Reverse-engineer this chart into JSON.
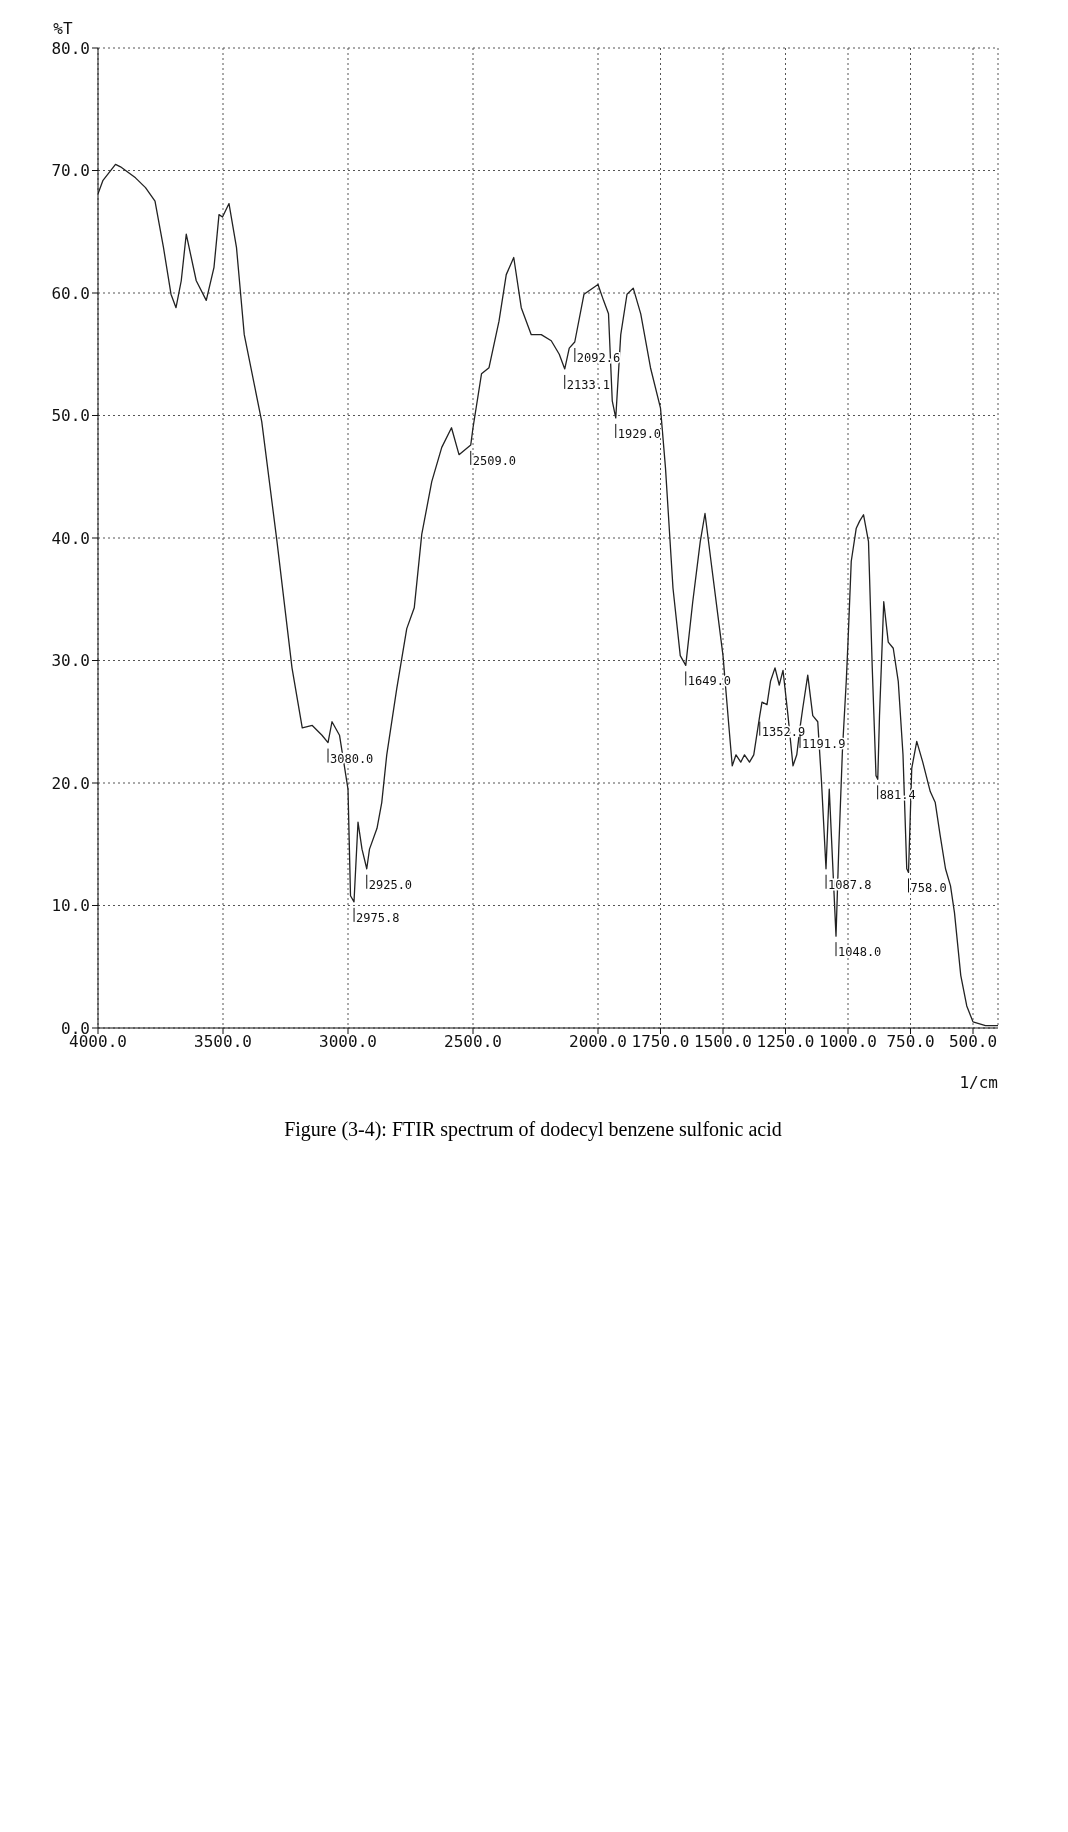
{
  "chart_data": {
    "type": "line",
    "title": "Figure (3-4): FTIR spectrum of dodecyl benzene sulfonic acid",
    "xlabel": "1/cm",
    "ylabel": "%T",
    "x": [
      4000,
      3980,
      3930,
      3910,
      3850,
      3810,
      3772,
      3738,
      3708,
      3688,
      3667,
      3647,
      3607,
      3567,
      3536,
      3516,
      3502,
      3476,
      3446,
      3415,
      3345,
      3284,
      3224,
      3183,
      3143,
      3104,
      3080,
      3064,
      3034,
      3000,
      2990,
      2976,
      2960,
      2944,
      2925,
      2914,
      2884,
      2865,
      2845,
      2805,
      2765,
      2735,
      2705,
      2665,
      2625,
      2586,
      2556,
      2509,
      2500,
      2466,
      2436,
      2396,
      2367,
      2337,
      2307,
      2267,
      2227,
      2187,
      2155,
      2133,
      2115,
      2093,
      2056,
      2000,
      1978,
      1958,
      1943,
      1929,
      1909,
      1884,
      1859,
      1829,
      1790,
      1750,
      1730,
      1700,
      1671,
      1649,
      1621,
      1591,
      1572,
      1548,
      1500,
      1478,
      1463,
      1448,
      1429,
      1414,
      1394,
      1377,
      1353,
      1344,
      1324,
      1310,
      1292,
      1275,
      1260,
      1240,
      1220,
      1205,
      1192,
      1181,
      1161,
      1141,
      1121,
      1106,
      1088,
      1075,
      1048,
      1037,
      1022,
      1007,
      1000,
      987,
      967,
      953,
      938,
      918,
      903,
      888,
      881,
      874,
      857,
      839,
      819,
      799,
      780,
      765,
      758,
      745,
      725,
      701,
      671,
      651,
      632,
      610,
      590,
      574,
      549,
      525,
      500,
      450,
      400
    ],
    "values": [
      68.1,
      69.2,
      70.5,
      70.3,
      69.4,
      68.6,
      67.5,
      63.7,
      59.9,
      58.8,
      61.0,
      64.8,
      61.0,
      59.4,
      62.1,
      66.4,
      66.2,
      67.3,
      63.7,
      56.6,
      49.5,
      39.7,
      29.4,
      24.5,
      24.7,
      23.9,
      23.3,
      25.0,
      23.9,
      19.5,
      10.8,
      10.3,
      16.8,
      14.6,
      13.0,
      14.6,
      16.3,
      18.4,
      22.3,
      27.7,
      32.6,
      34.3,
      40.3,
      44.6,
      47.4,
      49.0,
      46.8,
      47.6,
      49.0,
      53.4,
      53.9,
      57.7,
      61.5,
      62.9,
      58.8,
      56.6,
      56.6,
      56.1,
      55.0,
      53.8,
      55.5,
      56.0,
      59.9,
      60.7,
      59.4,
      58.3,
      51.2,
      49.8,
      56.6,
      59.9,
      60.4,
      58.3,
      53.9,
      50.6,
      45.7,
      35.9,
      30.4,
      29.6,
      34.8,
      39.7,
      42.0,
      38.1,
      30.4,
      25.0,
      21.4,
      22.3,
      21.7,
      22.3,
      21.7,
      22.3,
      25.5,
      26.6,
      26.4,
      28.3,
      29.4,
      28.0,
      29.2,
      25.5,
      21.4,
      22.3,
      24.5,
      26.1,
      28.8,
      25.5,
      25.0,
      20.1,
      13.0,
      19.5,
      7.5,
      14.6,
      22.8,
      28.3,
      31.5,
      38.1,
      40.8,
      41.4,
      41.9,
      39.7,
      29.4,
      20.6,
      20.3,
      25.5,
      34.8,
      31.5,
      31.0,
      28.3,
      22.3,
      13.0,
      12.7,
      21.2,
      23.4,
      21.7,
      19.3,
      18.4,
      15.8,
      13.0,
      11.6,
      9.4,
      4.3,
      1.8,
      0.5,
      0.2,
      0.2
    ],
    "color": "#222222",
    "xlim": [
      4000,
      400
    ],
    "xticks": [
      {
        "value": 4000,
        "label": "4000.0"
      },
      {
        "value": 3500,
        "label": "3500.0"
      },
      {
        "value": 3000,
        "label": "3000.0"
      },
      {
        "value": 2500,
        "label": "2500.0"
      },
      {
        "value": 2000,
        "label": "2000.0"
      },
      {
        "value": 1750,
        "label": "1750.0"
      },
      {
        "value": 1500,
        "label": "1500.0"
      },
      {
        "value": 1250,
        "label": "1250.0"
      },
      {
        "value": 1000,
        "label": "1000.0"
      },
      {
        "value": 750,
        "label": "750.0"
      },
      {
        "value": 500,
        "label": "500.0"
      }
    ],
    "ylim": [
      0,
      80
    ],
    "yticks": [
      {
        "value": 0,
        "label": "0.0"
      },
      {
        "value": 10,
        "label": "10.0"
      },
      {
        "value": 20,
        "label": "20.0"
      },
      {
        "value": 30,
        "label": "30.0"
      },
      {
        "value": 40,
        "label": "40.0"
      },
      {
        "value": 50,
        "label": "50.0"
      },
      {
        "value": 60,
        "label": "60.0"
      },
      {
        "value": 70,
        "label": "70.0"
      },
      {
        "value": 80,
        "label": "80.0"
      }
    ],
    "grid": true,
    "annotations": [
      {
        "text": "3080.0",
        "x": 3080,
        "y": 23.3
      },
      {
        "text": "2975.8",
        "x": 2975.8,
        "y": 10.3
      },
      {
        "text": "2925.0",
        "x": 2925,
        "y": 13.0
      },
      {
        "text": "2509.0",
        "x": 2509,
        "y": 47.6
      },
      {
        "text": "2133.1",
        "x": 2133.1,
        "y": 53.8
      },
      {
        "text": "2092.6",
        "x": 2092.6,
        "y": 56.0
      },
      {
        "text": "1929.0",
        "x": 1929,
        "y": 49.8
      },
      {
        "text": "1649.0",
        "x": 1649,
        "y": 29.6
      },
      {
        "text": "1352.9",
        "x": 1352.9,
        "y": 25.5
      },
      {
        "text": "1191.9",
        "x": 1191.9,
        "y": 24.5
      },
      {
        "text": "1087.8",
        "x": 1087.8,
        "y": 13.0
      },
      {
        "text": "1048.0",
        "x": 1048,
        "y": 7.5
      },
      {
        "text": "881.4",
        "x": 881.4,
        "y": 20.3
      },
      {
        "text": "758.0",
        "x": 758,
        "y": 12.7
      }
    ]
  }
}
